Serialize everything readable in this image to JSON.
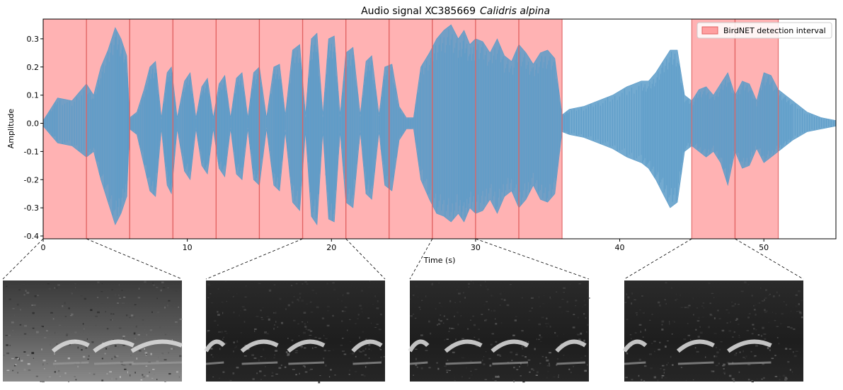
{
  "chart_data": {
    "type": "area",
    "title": "Audio signal XC385669",
    "title_species": "Calidris alpina",
    "xlabel": "Time (s)",
    "ylabel": "Amplitude",
    "xlim": [
      0,
      55
    ],
    "ylim": [
      -0.41,
      0.37
    ],
    "x_ticks": [
      0,
      10,
      20,
      30,
      40,
      50
    ],
    "y_ticks": [
      -0.4,
      -0.3,
      -0.2,
      -0.1,
      0.0,
      0.1,
      0.2,
      0.3
    ],
    "y_tick_labels": [
      "-0.4",
      "-0.3",
      "-0.2",
      "-0.1",
      "0.0",
      "0.1",
      "0.2",
      "0.3"
    ],
    "grid": false,
    "legend_position": "top-right",
    "series": [
      {
        "name": "",
        "color": "#5b9bc8",
        "envelope": {
          "t": [
            0,
            0.5,
            1,
            2,
            3,
            3.5,
            4,
            4.5,
            5,
            5.4,
            5.8,
            6,
            6.5,
            7,
            7.4,
            7.8,
            8.2,
            8.6,
            8.9,
            9.3,
            9.8,
            10.2,
            10.6,
            11,
            11.4,
            11.8,
            12.2,
            12.6,
            13,
            13.4,
            13.8,
            14.2,
            14.6,
            15,
            15.5,
            16,
            16.4,
            16.8,
            17.3,
            17.8,
            18.2,
            18.6,
            19,
            19.4,
            19.8,
            20.2,
            20.6,
            21,
            21.5,
            22,
            22.4,
            22.8,
            23.3,
            23.7,
            24.2,
            24.7,
            25.2,
            25.7,
            26.2,
            26.8,
            27.3,
            27.8,
            28.3,
            28.8,
            29.2,
            29.6,
            30,
            30.5,
            31,
            31.5,
            32,
            32.5,
            33,
            33.5,
            34,
            34.5,
            35,
            35.5,
            36,
            36.5,
            37.5,
            38.5,
            39.5,
            40.5,
            41.5,
            42,
            42.5,
            43,
            43.5,
            44,
            44.5,
            45,
            45.5,
            46,
            46.5,
            47,
            47.5,
            48,
            48.5,
            49,
            49.5,
            50,
            50.5,
            51,
            51.5,
            52,
            53,
            54,
            55
          ],
          "upper": [
            0.01,
            0.05,
            0.09,
            0.08,
            0.14,
            0.1,
            0.2,
            0.26,
            0.34,
            0.3,
            0.24,
            0.02,
            0.04,
            0.12,
            0.2,
            0.22,
            0.02,
            0.18,
            0.2,
            0.02,
            0.15,
            0.18,
            0.02,
            0.13,
            0.16,
            0.02,
            0.14,
            0.17,
            0.02,
            0.16,
            0.18,
            0.02,
            0.18,
            0.2,
            0.02,
            0.2,
            0.21,
            0.03,
            0.26,
            0.28,
            0.03,
            0.3,
            0.32,
            0.03,
            0.3,
            0.31,
            0.03,
            0.25,
            0.27,
            0.03,
            0.22,
            0.24,
            0.03,
            0.2,
            0.21,
            0.06,
            0.02,
            0.02,
            0.2,
            0.25,
            0.3,
            0.33,
            0.35,
            0.3,
            0.33,
            0.28,
            0.3,
            0.29,
            0.25,
            0.3,
            0.24,
            0.22,
            0.28,
            0.25,
            0.21,
            0.25,
            0.26,
            0.23,
            0.03,
            0.05,
            0.06,
            0.08,
            0.1,
            0.13,
            0.15,
            0.15,
            0.18,
            0.22,
            0.26,
            0.26,
            0.1,
            0.08,
            0.12,
            0.13,
            0.1,
            0.14,
            0.18,
            0.1,
            0.15,
            0.14,
            0.08,
            0.18,
            0.17,
            0.12,
            0.1,
            0.08,
            0.04,
            0.02,
            0.01
          ],
          "lower": [
            -0.01,
            -0.04,
            -0.07,
            -0.08,
            -0.12,
            -0.1,
            -0.2,
            -0.28,
            -0.36,
            -0.32,
            -0.26,
            -0.02,
            -0.04,
            -0.15,
            -0.24,
            -0.26,
            -0.02,
            -0.22,
            -0.25,
            -0.02,
            -0.17,
            -0.2,
            -0.02,
            -0.15,
            -0.18,
            -0.02,
            -0.16,
            -0.19,
            -0.02,
            -0.18,
            -0.2,
            -0.02,
            -0.2,
            -0.22,
            -0.02,
            -0.22,
            -0.24,
            -0.03,
            -0.28,
            -0.31,
            -0.03,
            -0.33,
            -0.36,
            -0.03,
            -0.34,
            -0.35,
            -0.03,
            -0.28,
            -0.3,
            -0.03,
            -0.25,
            -0.27,
            -0.03,
            -0.22,
            -0.24,
            -0.06,
            -0.02,
            -0.02,
            -0.2,
            -0.27,
            -0.32,
            -0.33,
            -0.35,
            -0.32,
            -0.35,
            -0.3,
            -0.32,
            -0.31,
            -0.27,
            -0.32,
            -0.26,
            -0.24,
            -0.3,
            -0.27,
            -0.22,
            -0.27,
            -0.28,
            -0.25,
            -0.03,
            -0.04,
            -0.05,
            -0.07,
            -0.09,
            -0.12,
            -0.14,
            -0.16,
            -0.2,
            -0.25,
            -0.3,
            -0.28,
            -0.1,
            -0.08,
            -0.1,
            -0.12,
            -0.1,
            -0.14,
            -0.22,
            -0.1,
            -0.16,
            -0.15,
            -0.09,
            -0.14,
            -0.12,
            -0.1,
            -0.08,
            -0.06,
            -0.03,
            -0.02,
            -0.01
          ]
        }
      }
    ],
    "detection": {
      "name": "BirdNET detection interval",
      "color": "#ff9fa0",
      "edge_color": "#e06060",
      "intervals": [
        [
          0,
          3
        ],
        [
          3,
          6
        ],
        [
          6,
          9
        ],
        [
          9,
          12
        ],
        [
          12,
          15
        ],
        [
          15,
          18
        ],
        [
          18,
          21
        ],
        [
          21,
          24
        ],
        [
          24,
          27
        ],
        [
          27,
          30
        ],
        [
          30,
          33
        ],
        [
          33,
          36
        ],
        [
          45,
          48
        ],
        [
          48,
          51
        ]
      ]
    },
    "zoom_links": [
      {
        "from_x": [
          0,
          3
        ],
        "target": 0
      },
      {
        "from_x": [
          18,
          21
        ],
        "target": 1
      },
      {
        "from_x": [
          27,
          30
        ],
        "target": 2
      },
      {
        "from_x": [
          45,
          48
        ],
        "target": 3
      }
    ]
  },
  "spectrograms": [
    {
      "kind": "noisy"
    },
    {
      "kind": "calls"
    },
    {
      "kind": "calls"
    },
    {
      "kind": "mixed"
    }
  ]
}
